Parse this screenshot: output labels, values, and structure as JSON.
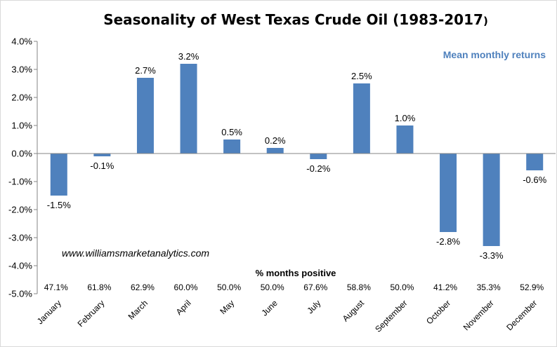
{
  "chart_data": {
    "type": "bar",
    "title": "Seasonality of West Texas Crude Oil (1983-2017",
    "title_closing": ")",
    "legend": "Mean monthly returns",
    "watermark": "www.williamsmarketanalytics.com",
    "categories": [
      "January",
      "February",
      "March",
      "April",
      "May",
      "June",
      "July",
      "August",
      "September",
      "October",
      "November",
      "December"
    ],
    "values": [
      -1.5,
      -0.1,
      2.7,
      3.2,
      0.5,
      0.2,
      -0.2,
      2.5,
      1.0,
      -2.8,
      -3.3,
      -0.6
    ],
    "value_labels": [
      "-1.5%",
      "-0.1%",
      "2.7%",
      "3.2%",
      "0.5%",
      "0.2%",
      "-0.2%",
      "2.5%",
      "1.0%",
      "-2.8%",
      "-3.3%",
      "-0.6%"
    ],
    "unit": "%",
    "ylim": [
      -5.0,
      4.0
    ],
    "yticks": [
      4.0,
      3.0,
      2.0,
      1.0,
      0.0,
      -1.0,
      -2.0,
      -3.0,
      -4.0,
      -5.0
    ],
    "ytick_labels": [
      "4.0%",
      "3.0%",
      "2.0%",
      "1.0%",
      "0.0%",
      "-1.0%",
      "-2.0%",
      "-3.0%",
      "-4.0%",
      "-5.0%"
    ],
    "grid": false,
    "legend_position": "top-right",
    "bar_color": "#4f81bd",
    "legend_color": "#4f81bd",
    "months_positive_header": "% months positive",
    "months_positive": [
      "47.1%",
      "61.8%",
      "62.9%",
      "60.0%",
      "50.0%",
      "50.0%",
      "67.6%",
      "58.8%",
      "50.0%",
      "41.2%",
      "35.3%",
      "52.9%"
    ]
  }
}
